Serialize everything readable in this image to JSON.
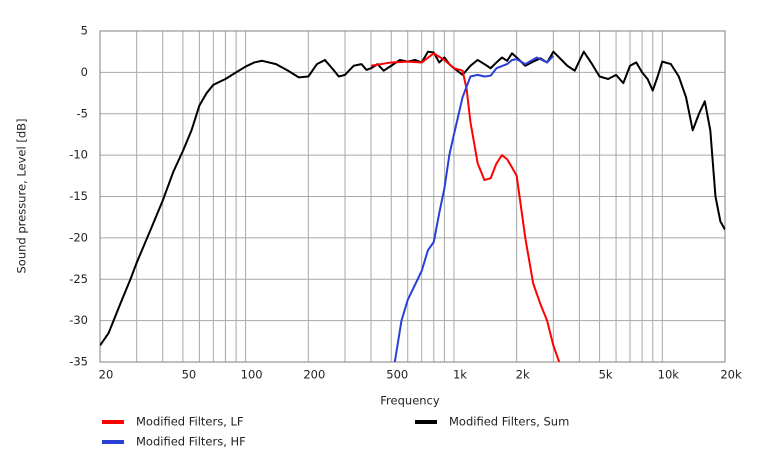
{
  "chart_data": {
    "type": "line",
    "x_label": "Frequency",
    "y_label": "Sound pressure, Level [dB]",
    "xscale": "log",
    "xlim": [
      20,
      20000
    ],
    "ylim": [
      -35,
      5
    ],
    "xticks": [
      20,
      50,
      100,
      200,
      500,
      {
        "value": 1000,
        "label": "1k"
      },
      {
        "value": 2000,
        "label": "2k"
      },
      {
        "value": 5000,
        "label": "5k"
      },
      {
        "value": 10000,
        "label": "10k"
      },
      {
        "value": 20000,
        "label": "20k"
      }
    ],
    "xminor_ticks": [
      30,
      40,
      60,
      70,
      80,
      90,
      300,
      400,
      600,
      700,
      800,
      900,
      3000,
      4000,
      6000,
      7000,
      8000,
      9000
    ],
    "yticks": [
      -35,
      -30,
      -25,
      -20,
      -15,
      -10,
      -5,
      0,
      5
    ],
    "grid": true,
    "legend": "bottom",
    "series": [
      {
        "name": "Modified Filters, Sum",
        "color": "#000000",
        "x": [
          20,
          22,
          25,
          28,
          30,
          35,
          40,
          45,
          50,
          55,
          60,
          65,
          70,
          80,
          90,
          100,
          110,
          120,
          140,
          160,
          180,
          200,
          220,
          240,
          260,
          280,
          300,
          330,
          360,
          380,
          400,
          430,
          460,
          500,
          550,
          600,
          650,
          700,
          750,
          800,
          850,
          900,
          950,
          1000,
          1100,
          1200,
          1300,
          1400,
          1500,
          1600,
          1700,
          1800,
          1900,
          2000,
          2200,
          2400,
          2600,
          2800,
          3000,
          3200,
          3500,
          3800,
          4200,
          4600,
          5000,
          5500,
          6000,
          6500,
          7000,
          7500,
          8000,
          8500,
          9000,
          9500,
          10000,
          11000,
          12000,
          13000,
          14000,
          15000,
          16000,
          17000,
          18000,
          19000,
          20000
        ],
        "values": [
          -33,
          -31.5,
          -28,
          -25,
          -23,
          -19,
          -15.5,
          -12,
          -9.5,
          -7,
          -4,
          -2.5,
          -1.5,
          -0.8,
          0,
          0.7,
          1.2,
          1.4,
          1,
          0.2,
          -0.6,
          -0.5,
          1,
          1.5,
          0.5,
          -0.5,
          -0.3,
          0.8,
          1,
          0.3,
          0.5,
          1,
          0.2,
          0.8,
          1.5,
          1.3,
          1.5,
          1.2,
          2.5,
          2.4,
          1.2,
          1.8,
          1,
          0.5,
          -0.3,
          0.8,
          1.5,
          1,
          0.5,
          1.2,
          1.8,
          1.4,
          2.3,
          1.8,
          0.8,
          1.3,
          1.7,
          1.2,
          2.5,
          1.8,
          0.8,
          0.2,
          2.5,
          1,
          -0.5,
          -0.8,
          -0.3,
          -1.3,
          0.8,
          1.2,
          0,
          -0.8,
          -2.2,
          -0.5,
          1.3,
          1,
          -0.5,
          -3,
          -7,
          -5,
          -3.5,
          -7,
          -15,
          -18,
          -19
        ]
      },
      {
        "name": "Modified Filters, LF",
        "color": "#ff0000",
        "x": [
          400,
          500,
          600,
          700,
          800,
          900,
          1000,
          1100,
          1150,
          1200,
          1300,
          1400,
          1500,
          1600,
          1700,
          1800,
          1900,
          2000,
          2200,
          2400,
          2600,
          2800,
          3000,
          3200
        ],
        "values": [
          0.8,
          1.2,
          1.3,
          1.2,
          2.3,
          1.5,
          0.5,
          0.2,
          -2,
          -6,
          -11,
          -13,
          -12.8,
          -11,
          -10,
          -10.5,
          -11.5,
          -12.5,
          -20,
          -25.5,
          -28,
          -30,
          -33,
          -35
        ]
      },
      {
        "name": "Modified Filters, HF",
        "color": "#2a3fd6",
        "x": [
          520,
          560,
          600,
          700,
          750,
          800,
          850,
          900,
          950,
          1000,
          1100,
          1200,
          1300,
          1400,
          1500,
          1600,
          1800,
          1900,
          2000,
          2200,
          2500,
          2800,
          3000
        ],
        "values": [
          -35,
          -30,
          -27.5,
          -24,
          -21.5,
          -20.5,
          -17,
          -14,
          -10,
          -7.5,
          -3,
          -0.5,
          -0.3,
          -0.5,
          -0.4,
          0.5,
          1,
          1.5,
          1.6,
          1,
          1.8,
          1.2,
          2
        ]
      }
    ]
  }
}
